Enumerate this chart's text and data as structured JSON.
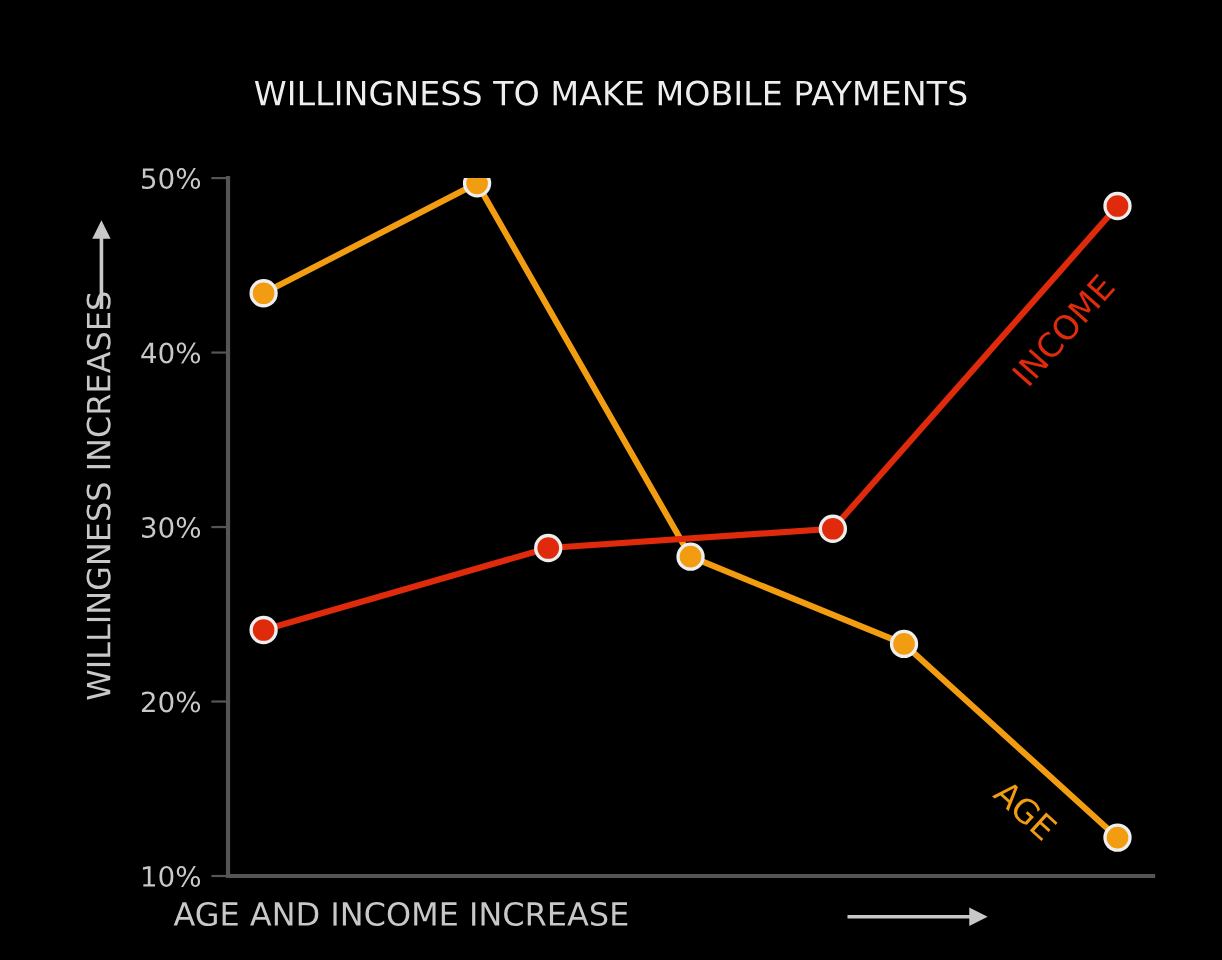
{
  "chart_data": {
    "type": "line",
    "title": "WILLINGNESS TO MAKE MOBILE PAYMENTS",
    "xlabel": "AGE AND INCOME INCREASE",
    "ylabel": "WILLINGNESS INCREASES",
    "series": [
      {
        "name": "AGE",
        "color": "#f29c12",
        "values": [
          43.4,
          null,
          null,
          49.7,
          null,
          null,
          28.3,
          null,
          null,
          23.3,
          null,
          null,
          12.2
        ]
      },
      {
        "name": "INCOME",
        "color": "#e02a0c",
        "values": [
          24.1,
          null,
          null,
          null,
          28.8,
          null,
          null,
          null,
          29.9,
          null,
          null,
          null,
          48.4
        ]
      }
    ],
    "categories": [
      null,
      null,
      null,
      null,
      null,
      null,
      null,
      null,
      null,
      null,
      null,
      null,
      null
    ],
    "ylim": [
      10,
      50
    ],
    "yticks": [
      {
        "value": 10,
        "label": "10%"
      },
      {
        "value": 20,
        "label": "20%"
      },
      {
        "value": 30,
        "label": "30%"
      },
      {
        "value": 40,
        "label": "40%"
      },
      {
        "value": 50,
        "label": "50%"
      }
    ],
    "tick_labels": "y",
    "marker": "circle",
    "line_style": "solid",
    "grid": false,
    "legend": false
  }
}
